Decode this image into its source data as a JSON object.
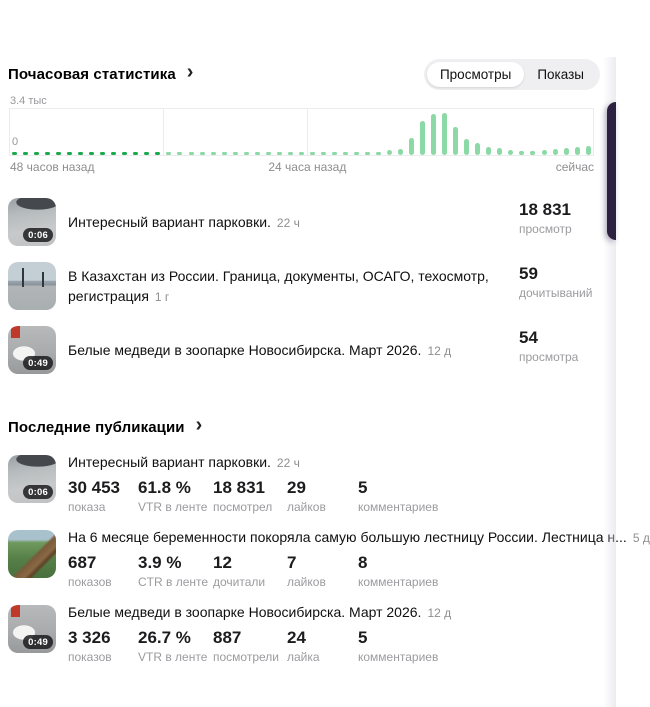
{
  "icons": {
    "chevron_right": "›"
  },
  "theme": {
    "green_dark": "#1ba94c",
    "green_light": "#8bd9a4",
    "toggle_bg": "#efeff1",
    "widget_purple": "#2e2040",
    "muted_text": "#9b9b9f"
  },
  "hourly": {
    "title": "Почасовая статистика",
    "toggle": {
      "selected": "Просмотры",
      "other": "Показы"
    },
    "videos": [
      {
        "title": "Интересный вариант парковки.",
        "age": "22 ч",
        "duration": "0:06",
        "value": "18 831",
        "metric": "просмотр",
        "thumb_kind": "snow-road-video"
      },
      {
        "title": "В Казахстан из России. Граница, документы, ОСАГО, техосмотр, регистрация",
        "age": "1 г",
        "value": "59",
        "metric": "дочитываний",
        "thumb_kind": "border-road-photo"
      },
      {
        "title": "Белые медведи в зоопарке Новосибирска. Март 2026.",
        "age": "12 д",
        "duration": "0:49",
        "value": "54",
        "metric": "просмотра",
        "thumb_kind": "polar-bear-video"
      }
    ]
  },
  "chart_data": {
    "type": "bar",
    "title": "Почасовая статистика — Просмотры",
    "y_top_label": "3.4 тыс",
    "y_bottom_label": "0",
    "x_labels": [
      "48 часов назад",
      "24 часа назад",
      "сейчас"
    ],
    "ylim": [
      0,
      3400
    ],
    "grid": "vertical-only",
    "gridlines_pct": [
      26.2,
      51
    ],
    "dark_bar_count": 14,
    "values": [
      150,
      150,
      150,
      150,
      150,
      150,
      150,
      150,
      150,
      150,
      150,
      150,
      150,
      150,
      150,
      150,
      150,
      150,
      150,
      150,
      150,
      150,
      150,
      150,
      150,
      150,
      150,
      150,
      150,
      150,
      150,
      150,
      150,
      200,
      350,
      500,
      1330,
      2600,
      3180,
      3250,
      2200,
      1250,
      890,
      600,
      520,
      370,
      300,
      300,
      370,
      450,
      520,
      610,
      690
    ]
  },
  "publications": {
    "title": "Последние публикации",
    "items": [
      {
        "title": "Интересный вариант парковки.",
        "age": "22 ч",
        "duration": "0:06",
        "thumb_kind": "snow-road-video",
        "stats": [
          {
            "value": "30 453",
            "label": "показа"
          },
          {
            "value": "61.8 %",
            "label": "VTR в ленте"
          },
          {
            "value": "18 831",
            "label": "посмотрел"
          },
          {
            "value": "29",
            "label": "лайков"
          },
          {
            "value": "5",
            "label": "комментариев"
          }
        ]
      },
      {
        "title": "На 6 месяце беременности покоряла самую большую лестницу России. Лестница н...",
        "age": "5 д",
        "thumb_kind": "mountain-stairs-photo",
        "stats": [
          {
            "value": "687",
            "label": "показов"
          },
          {
            "value": "3.9 %",
            "label": "CTR в ленте"
          },
          {
            "value": "12",
            "label": "дочитали"
          },
          {
            "value": "7",
            "label": "лайков"
          },
          {
            "value": "8",
            "label": "комментариев"
          }
        ]
      },
      {
        "title": "Белые медведи в зоопарке Новосибирска. Март 2026.",
        "age": "12 д",
        "duration": "0:49",
        "thumb_kind": "polar-bear-video",
        "stats": [
          {
            "value": "3 326",
            "label": "показов"
          },
          {
            "value": "26.7 %",
            "label": "VTR в ленте"
          },
          {
            "value": "887",
            "label": "посмотрели"
          },
          {
            "value": "24",
            "label": "лайка"
          },
          {
            "value": "5",
            "label": "комментариев"
          }
        ]
      }
    ]
  }
}
